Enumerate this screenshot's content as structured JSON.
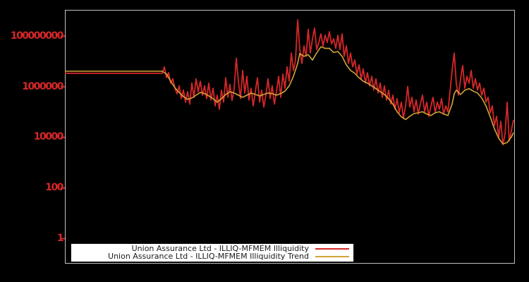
{
  "figure": {
    "background_color": "#000000",
    "plot_border_color": "#c0c0c0",
    "tick_label_color": "#d62728"
  },
  "chart_data": {
    "type": "line",
    "title": "",
    "xlabel": "",
    "ylabel": "",
    "x_axis": {
      "tick_labels_visible": false,
      "unit": "time (trading-day index, 1 step = 3px)"
    },
    "y_axis": {
      "scale": "log",
      "ticks": [
        1,
        100,
        10000,
        1000000,
        100000000
      ],
      "ylim": [
        0.1,
        1000000000
      ]
    },
    "legend_position": "bottom-center",
    "series": [
      {
        "name": "Union Assurance Ltd - ILLIQ-MFMEM Illiquidity",
        "color": "#d62728",
        "points": [
          [
            0,
            3300000.0
          ],
          [
            46,
            3300000.0
          ],
          [
            47,
            5900000.0
          ],
          [
            48,
            2200000.0
          ],
          [
            49,
            3500000.0
          ],
          [
            50,
            1350000.0
          ],
          [
            51,
            2000000.0
          ],
          [
            52,
            850000.0
          ],
          [
            53,
            510000.0
          ],
          [
            54,
            1050000.0
          ],
          [
            55,
            330000.0
          ],
          [
            56,
            710000.0
          ],
          [
            57,
            240000.0
          ],
          [
            58,
            620000.0
          ],
          [
            59,
            200000.0
          ],
          [
            60,
            1350000.0
          ],
          [
            61,
            370000.0
          ],
          [
            62,
            2000000.0
          ],
          [
            63,
            620000.0
          ],
          [
            64,
            1600000.0
          ],
          [
            65,
            450000.0
          ],
          [
            66,
            1050000.0
          ],
          [
            67,
            330000.0
          ],
          [
            68,
            1350000.0
          ],
          [
            69,
            290000.0
          ],
          [
            70,
            850000.0
          ],
          [
            71,
            170000.0
          ],
          [
            72,
            450000.0
          ],
          [
            73,
            125000.0
          ],
          [
            74,
            710000.0
          ],
          [
            75,
            240000.0
          ],
          [
            76,
            2200000.0
          ],
          [
            77,
            370000.0
          ],
          [
            78,
            1200000.0
          ],
          [
            79,
            280000.0
          ],
          [
            80,
            820000.0
          ],
          [
            81,
            13000000.0
          ],
          [
            82,
            1600000.0
          ],
          [
            83,
            330000.0
          ],
          [
            84,
            4300000.0
          ],
          [
            85,
            550000.0
          ],
          [
            86,
            2500000.0
          ],
          [
            87,
            290000.0
          ],
          [
            88,
            850000.0
          ],
          [
            89,
            170000.0
          ],
          [
            90,
            620000.0
          ],
          [
            91,
            2200000.0
          ],
          [
            92,
            240000.0
          ],
          [
            93,
            710000.0
          ],
          [
            94,
            155000.0
          ],
          [
            95,
            450000.0
          ],
          [
            96,
            2000000.0
          ],
          [
            97,
            330000.0
          ],
          [
            98,
            1050000.0
          ],
          [
            99,
            200000.0
          ],
          [
            100,
            620000.0
          ],
          [
            101,
            2500000.0
          ],
          [
            102,
            370000.0
          ],
          [
            103,
            3100000.0
          ],
          [
            104,
            850000.0
          ],
          [
            105,
            5900000.0
          ],
          [
            106,
            1600000.0
          ],
          [
            107,
            21000000.0
          ],
          [
            108,
            4300000.0
          ],
          [
            109,
            11000000.0
          ],
          [
            110,
            430000000.0
          ],
          [
            111,
            29000000.0
          ],
          [
            112,
            8100000.0
          ],
          [
            113,
            40000000.0
          ],
          [
            114,
            15500000.0
          ],
          [
            115,
            180000000.0
          ],
          [
            116,
            21000000.0
          ],
          [
            117,
            76000000.0
          ],
          [
            118,
            200000000.0
          ],
          [
            119,
            29000000.0
          ],
          [
            120,
            55000000.0
          ],
          [
            121,
            120000000.0
          ],
          [
            122,
            40000000.0
          ],
          [
            123,
            105000000.0
          ],
          [
            124,
            55000000.0
          ],
          [
            125,
            145000000.0
          ],
          [
            126,
            48000000.0
          ],
          [
            127,
            76000000.0
          ],
          [
            128,
            32000000.0
          ],
          [
            129,
            105000000.0
          ],
          [
            130,
            29000000.0
          ],
          [
            131,
            120000000.0
          ],
          [
            132,
            15500000.0
          ],
          [
            133,
            40000000.0
          ],
          [
            134,
            8100000.0
          ],
          [
            135,
            21000000.0
          ],
          [
            136,
            5900000.0
          ],
          [
            137,
            11000000.0
          ],
          [
            138,
            3100000.0
          ],
          [
            139,
            7100000.0
          ],
          [
            140,
            2000000.0
          ],
          [
            141,
            4900000.0
          ],
          [
            142,
            1350000.0
          ],
          [
            143,
            3500000.0
          ],
          [
            144,
            1050000.0
          ],
          [
            145,
            2500000.0
          ],
          [
            146,
            710000.0
          ],
          [
            147,
            2000000.0
          ],
          [
            148,
            550000.0
          ],
          [
            149,
            1350000.0
          ],
          [
            150,
            370000.0
          ],
          [
            151,
            1050000.0
          ],
          [
            152,
            290000.0
          ],
          [
            153,
            710000.0
          ],
          [
            154,
            200000.0
          ],
          [
            155,
            450000.0
          ],
          [
            156,
            125000.0
          ],
          [
            157,
            330000.0
          ],
          [
            158,
            91000.0
          ],
          [
            159,
            240000.0
          ],
          [
            160,
            55000.0
          ],
          [
            161,
            170000.0
          ],
          [
            162,
            1000000.0
          ],
          [
            163,
            155000.0
          ],
          [
            164,
            370000.0
          ],
          [
            165,
            100000.0
          ],
          [
            166,
            290000.0
          ],
          [
            167,
            81000.0
          ],
          [
            168,
            200000.0
          ],
          [
            169,
            450000.0
          ],
          [
            170,
            100000.0
          ],
          [
            171,
            240000.0
          ],
          [
            172,
            66000.0
          ],
          [
            173,
            170000.0
          ],
          [
            174,
            370000.0
          ],
          [
            175,
            91000.0
          ],
          [
            176,
            240000.0
          ],
          [
            177,
            125000.0
          ],
          [
            178,
            330000.0
          ],
          [
            179,
            81000.0
          ],
          [
            180,
            170000.0
          ],
          [
            181,
            100000.0
          ],
          [
            182,
            620000.0
          ],
          [
            183,
            4300000.0
          ],
          [
            184,
            21000000.0
          ],
          [
            185,
            1200000.0
          ],
          [
            186,
            450000.0
          ],
          [
            187,
            2000000.0
          ],
          [
            188,
            6700000.0
          ],
          [
            189,
            850000.0
          ],
          [
            190,
            2500000.0
          ],
          [
            191,
            1350000.0
          ],
          [
            192,
            4300000.0
          ],
          [
            193,
            850000.0
          ],
          [
            194,
            2000000.0
          ],
          [
            195,
            710000.0
          ],
          [
            196,
            1350000.0
          ],
          [
            197,
            450000.0
          ],
          [
            198,
            850000.0
          ],
          [
            199,
            240000.0
          ],
          [
            200,
            370000.0
          ],
          [
            201,
            91000.0
          ],
          [
            202,
            170000.0
          ],
          [
            203,
            29000.0
          ],
          [
            204,
            66000.0
          ],
          [
            205,
            9600.0
          ],
          [
            206,
            42000.0
          ],
          [
            207,
            5000.0
          ],
          [
            208,
            13000.0
          ],
          [
            209,
            240000.0
          ],
          [
            210,
            7000.0
          ],
          [
            211,
            18000.0
          ],
          [
            212,
            48000.0
          ]
        ]
      },
      {
        "name": "Union Assurance Ltd - ILLIQ-MFMEM Illiquidity Trend",
        "color": "#d4a437",
        "points": [
          [
            0,
            4000000.0
          ],
          [
            46,
            4000000.0
          ],
          [
            48,
            3100000.0
          ],
          [
            50,
            1600000.0
          ],
          [
            52,
            890000.0
          ],
          [
            54,
            580000.0
          ],
          [
            56,
            400000.0
          ],
          [
            58,
            310000.0
          ],
          [
            60,
            350000.0
          ],
          [
            62,
            450000.0
          ],
          [
            64,
            580000.0
          ],
          [
            66,
            520000.0
          ],
          [
            68,
            420000.0
          ],
          [
            70,
            330000.0
          ],
          [
            72,
            240000.0
          ],
          [
            74,
            330000.0
          ],
          [
            76,
            480000.0
          ],
          [
            78,
            620000.0
          ],
          [
            80,
            550000.0
          ],
          [
            82,
            450000.0
          ],
          [
            84,
            370000.0
          ],
          [
            86,
            450000.0
          ],
          [
            88,
            550000.0
          ],
          [
            90,
            480000.0
          ],
          [
            92,
            420000.0
          ],
          [
            94,
            480000.0
          ],
          [
            96,
            550000.0
          ],
          [
            98,
            520000.0
          ],
          [
            100,
            450000.0
          ],
          [
            102,
            520000.0
          ],
          [
            104,
            650000.0
          ],
          [
            106,
            1050000.0
          ],
          [
            108,
            2500000.0
          ],
          [
            110,
            8100000.0
          ],
          [
            111,
            20000000.0
          ],
          [
            113,
            15500000.0
          ],
          [
            115,
            18000000.0
          ],
          [
            117,
            11000000.0
          ],
          [
            119,
            21000000.0
          ],
          [
            121,
            37000000.0
          ],
          [
            123,
            32000000.0
          ],
          [
            125,
            32000000.0
          ],
          [
            127,
            22000000.0
          ],
          [
            129,
            24000000.0
          ],
          [
            131,
            15500000.0
          ],
          [
            133,
            7100000.0
          ],
          [
            135,
            4300000.0
          ],
          [
            137,
            3300000.0
          ],
          [
            139,
            2200000.0
          ],
          [
            141,
            1600000.0
          ],
          [
            143,
            1350000.0
          ],
          [
            145,
            1050000.0
          ],
          [
            147,
            820000.0
          ],
          [
            149,
            620000.0
          ],
          [
            151,
            480000.0
          ],
          [
            153,
            330000.0
          ],
          [
            155,
            200000.0
          ],
          [
            157,
            100000.0
          ],
          [
            159,
            63000.0
          ],
          [
            161,
            49000.0
          ],
          [
            163,
            66000.0
          ],
          [
            165,
            85000.0
          ],
          [
            167,
            91000.0
          ],
          [
            169,
            100000.0
          ],
          [
            171,
            81000.0
          ],
          [
            173,
            71000.0
          ],
          [
            175,
            91000.0
          ],
          [
            177,
            100000.0
          ],
          [
            179,
            81000.0
          ],
          [
            181,
            71000.0
          ],
          [
            183,
            200000.0
          ],
          [
            184,
            520000.0
          ],
          [
            185,
            710000.0
          ],
          [
            187,
            480000.0
          ],
          [
            189,
            710000.0
          ],
          [
            191,
            820000.0
          ],
          [
            193,
            650000.0
          ],
          [
            195,
            550000.0
          ],
          [
            197,
            350000.0
          ],
          [
            199,
            170000.0
          ],
          [
            201,
            63000.0
          ],
          [
            203,
            21000.0
          ],
          [
            205,
            9100.0
          ],
          [
            207,
            5300.0
          ],
          [
            209,
            6100.0
          ],
          [
            211,
            10000.0
          ],
          [
            212,
            15000.0
          ]
        ]
      }
    ]
  },
  "legend": {
    "entries": [
      {
        "label": "Union Assurance Ltd - ILLIQ-MFMEM Illiquidity",
        "color": "#d62728"
      },
      {
        "label": "Union Assurance Ltd - ILLIQ-MFMEM Illiquidity Trend",
        "color": "#d4a437"
      }
    ]
  }
}
